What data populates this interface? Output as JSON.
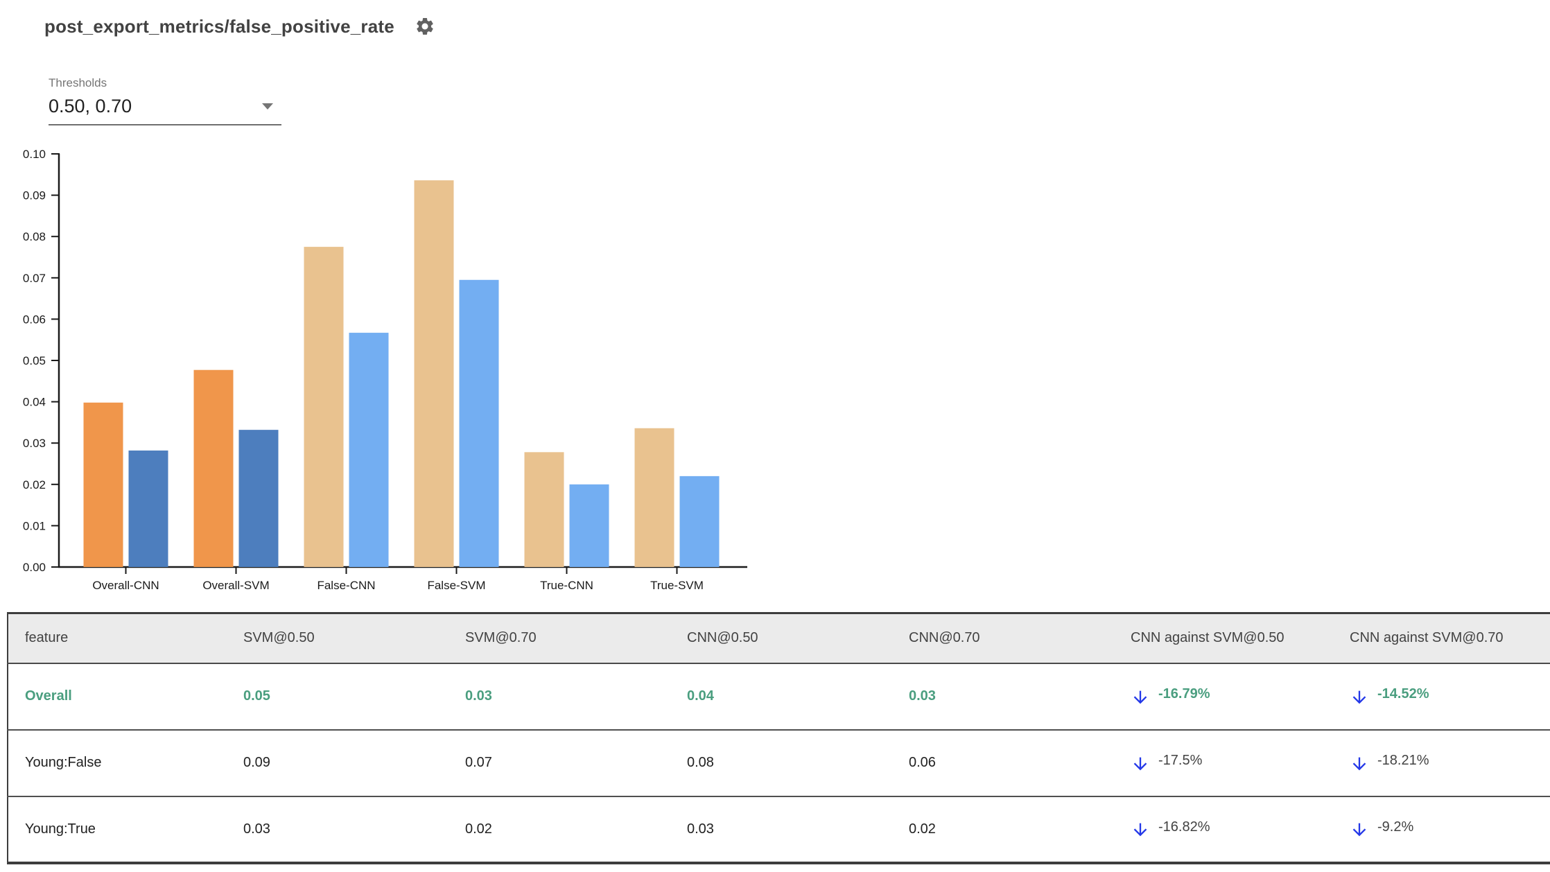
{
  "header": {
    "title": "post_export_metrics/false_positive_rate"
  },
  "controls": {
    "thresholds_label": "Thresholds",
    "thresholds_value": "0.50, 0.70"
  },
  "colors": {
    "accent_green": "#4A9E7F",
    "arrow_blue": "#2438E8",
    "axis": "#1a1a1a",
    "overall_50": "#F0964B",
    "overall_70": "#4D7EBE",
    "slice_50": "#E9C28F",
    "slice_70": "#73AEF2"
  },
  "chart_data": {
    "type": "bar",
    "title": "",
    "xlabel": "",
    "ylabel": "",
    "categories": [
      "Overall-CNN",
      "Overall-SVM",
      "False-CNN",
      "False-SVM",
      "True-CNN",
      "True-SVM"
    ],
    "series": [
      {
        "name": "threshold 0.50",
        "values": [
          0.0398,
          0.0477,
          0.0775,
          0.0936,
          0.0278,
          0.0336
        ],
        "colors": [
          "#F0964B",
          "#F0964B",
          "#E9C28F",
          "#E9C28F",
          "#E9C28F",
          "#E9C28F"
        ]
      },
      {
        "name": "threshold 0.70",
        "values": [
          0.0282,
          0.0332,
          0.0567,
          0.0695,
          0.02,
          0.022
        ],
        "colors": [
          "#4D7EBE",
          "#4D7EBE",
          "#73AEF2",
          "#73AEF2",
          "#73AEF2",
          "#73AEF2"
        ]
      }
    ],
    "ylim": [
      0,
      0.1
    ],
    "ytick_step": 0.01,
    "ytick_labels": [
      "0.00",
      "0.01",
      "0.02",
      "0.03",
      "0.04",
      "0.05",
      "0.06",
      "0.07",
      "0.08",
      "0.09",
      "0.10"
    ],
    "grid": false,
    "legend": "none"
  },
  "table": {
    "headers": [
      "feature",
      "SVM@0.50",
      "SVM@0.70",
      "CNN@0.50",
      "CNN@0.70",
      "CNN against SVM@0.50",
      "CNN against SVM@0.70"
    ],
    "rows": [
      {
        "feature": "Overall",
        "values": [
          "0.05",
          "0.03",
          "0.04",
          "0.03"
        ],
        "comparisons": [
          "-16.79%",
          "-14.52%"
        ],
        "direction": [
          "down",
          "down"
        ],
        "highlight": true
      },
      {
        "feature": "Young:False",
        "values": [
          "0.09",
          "0.07",
          "0.08",
          "0.06"
        ],
        "comparisons": [
          "-17.5%",
          "-18.21%"
        ],
        "direction": [
          "down",
          "down"
        ],
        "highlight": false
      },
      {
        "feature": "Young:True",
        "values": [
          "0.03",
          "0.02",
          "0.03",
          "0.02"
        ],
        "comparisons": [
          "-16.82%",
          "-9.2%"
        ],
        "direction": [
          "down",
          "down"
        ],
        "highlight": false
      }
    ]
  }
}
